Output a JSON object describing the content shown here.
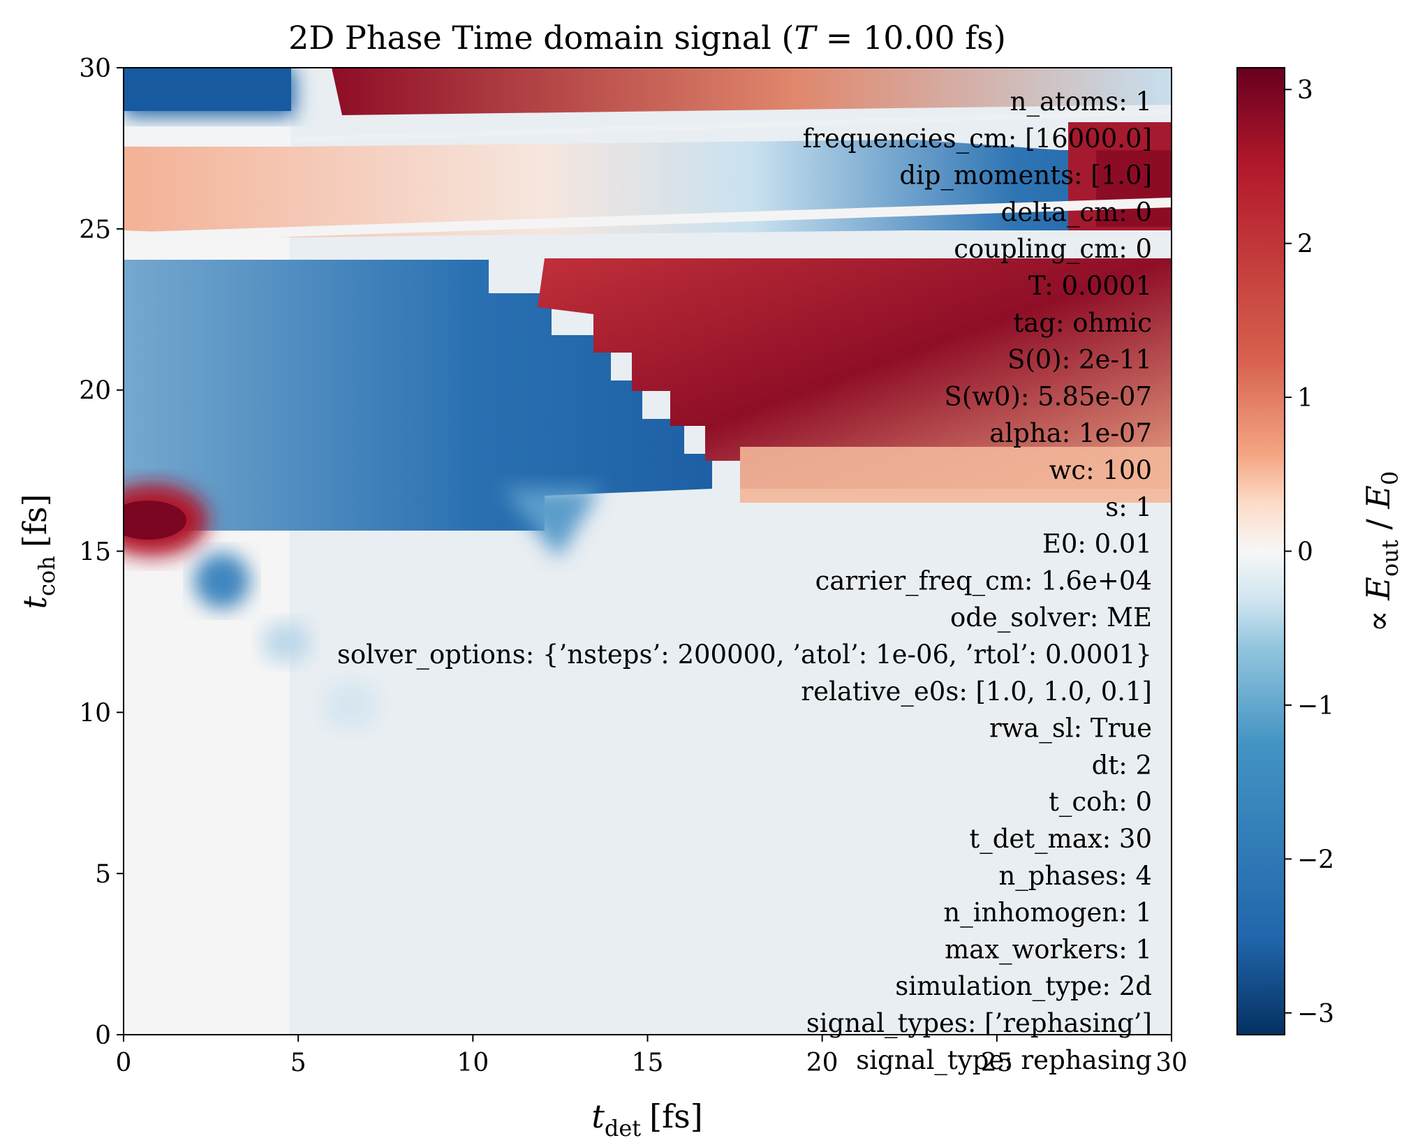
{
  "chart_data": {
    "type": "heatmap",
    "title_main": "2D Phase Time domain signal (",
    "title_var": "T",
    "title_eq": " = 10.00 fs)",
    "xlabel": {
      "sym": "t",
      "sub": "det",
      "unit": "[fs]"
    },
    "ylabel": {
      "sym": "t",
      "sub": "coh",
      "unit": "[fs]"
    },
    "colorbar_label": {
      "prefix": "∝ ",
      "num": "E",
      "num_sub": "out",
      "sep": " / ",
      "den": "E",
      "den_sub": "0"
    },
    "xlim": [
      0,
      30
    ],
    "ylim": [
      0,
      30
    ],
    "xticks": [
      "0",
      "5",
      "10",
      "15",
      "20",
      "25",
      "30"
    ],
    "yticks": [
      "0",
      "5",
      "10",
      "15",
      "20",
      "25",
      "30"
    ],
    "colorbar_range": [
      -3.14159,
      3.14159
    ],
    "colorbar_ticks": [
      "−3",
      "−2",
      "−1",
      "0",
      "1",
      "2",
      "3"
    ],
    "colormap": "RdBu_r",
    "colors": {
      "dark_red": "#67001f",
      "red": "#b2182b",
      "light_red": "#f4a582",
      "white": "#f7f7f7",
      "light_blue": "#92c5de",
      "blue": "#2166ac",
      "dark_blue": "#053061"
    },
    "phase_regions_note_free": true,
    "annotations": [
      "n_atoms: 1",
      "frequencies_cm: [16000.0]",
      "dip_moments: [1.0]",
      "delta_cm: 0",
      "coupling_cm: 0",
      "T: 0.0001",
      "tag: ohmic",
      "S(0): 2e-11",
      "S(w0): 5.85e-07",
      "alpha: 1e-07",
      "wc: 100",
      "s: 1",
      "E0: 0.01",
      "carrier_freq_cm: 1.6e+04",
      "ode_solver: ME",
      "solver_options: {’nsteps’: 200000, ’atol’: 1e-06, ’rtol’: 0.0001}",
      "relative_e0s: [1.0, 1.0, 0.1]",
      "rwa_sl: True",
      "dt: 2",
      "t_coh: 0",
      "t_det_max: 30",
      "n_phases: 4",
      "n_inhomogen: 1",
      "max_workers: 1",
      "simulation_type: 2d",
      "signal_types: [’rephasing’]",
      "signal_type: rephasing"
    ]
  }
}
